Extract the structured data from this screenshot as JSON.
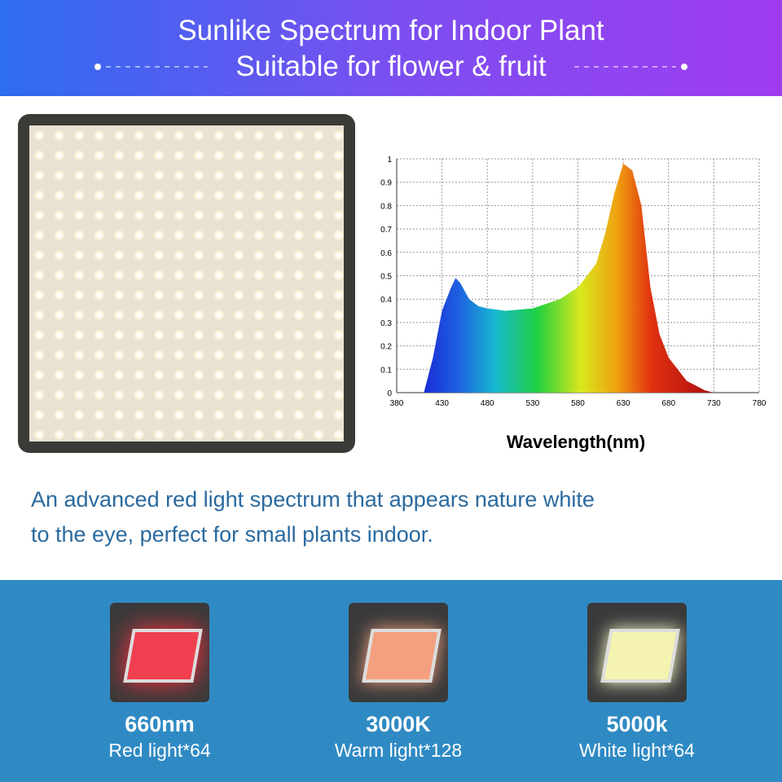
{
  "header": {
    "title": "Sunlike Spectrum for Indoor Plant",
    "subtitle": "Suitable for flower & fruit"
  },
  "chart_data": {
    "type": "area",
    "x_label": "Wavelength(nm)",
    "x": [
      410,
      420,
      430,
      440,
      445,
      450,
      460,
      470,
      480,
      500,
      530,
      560,
      580,
      600,
      610,
      620,
      630,
      640,
      650,
      660,
      670,
      680,
      700,
      720,
      730
    ],
    "values": [
      0,
      0.15,
      0.35,
      0.45,
      0.49,
      0.47,
      0.4,
      0.37,
      0.36,
      0.35,
      0.36,
      0.4,
      0.45,
      0.55,
      0.68,
      0.85,
      0.98,
      0.95,
      0.8,
      0.45,
      0.25,
      0.15,
      0.05,
      0.01,
      0
    ],
    "xlim": [
      380,
      780
    ],
    "ylim": [
      0,
      1
    ],
    "xticks": [
      380,
      430,
      480,
      530,
      580,
      630,
      680,
      730,
      780
    ],
    "yticks": [
      0,
      0.1,
      0.2,
      0.3,
      0.4,
      0.5,
      0.6,
      0.7,
      0.8,
      0.9,
      1
    ],
    "grid": true
  },
  "description": {
    "lines": [
      "An advanced red light spectrum that appears nature white",
      "to the eye,  perfect for small plants indoor."
    ]
  },
  "leds": [
    {
      "value": "660nm",
      "label": "Red light*64"
    },
    {
      "value": "3000K",
      "label": "Warm light*128"
    },
    {
      "value": "5000k",
      "label": "White light*64"
    }
  ]
}
